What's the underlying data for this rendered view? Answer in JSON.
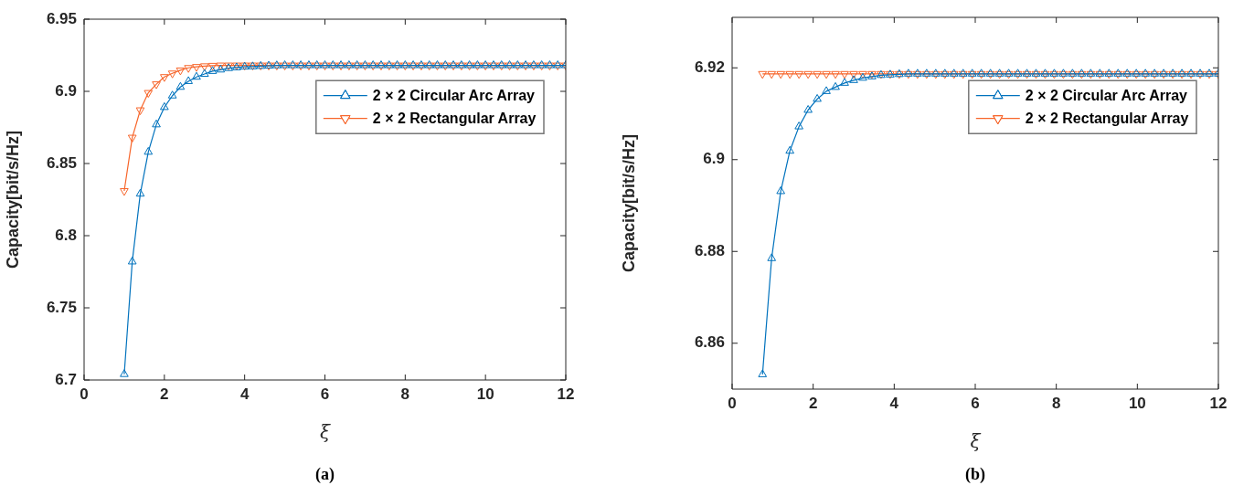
{
  "chart_data": [
    {
      "type": "line",
      "xlabel": "ξ",
      "ylabel": "Capacity[bit/s/Hz]",
      "annotations": [
        "(a)"
      ],
      "x": [
        1.0,
        1.2,
        1.4,
        1.6,
        1.8,
        2.0,
        2.2,
        2.4,
        2.6,
        2.8,
        3.0,
        3.2,
        3.4,
        3.6,
        3.8,
        4.0,
        4.2,
        4.4,
        4.6,
        4.8,
        5.0,
        5.2,
        5.4,
        5.6,
        5.8,
        6.0,
        6.2,
        6.4,
        6.6,
        6.8,
        7.0,
        7.2,
        7.4,
        7.6,
        7.8,
        8.0,
        8.2,
        8.4,
        8.6,
        8.8,
        9.0,
        9.2,
        9.4,
        9.6,
        9.8,
        10.0,
        10.2,
        10.4,
        10.6,
        10.8,
        11.0,
        11.2,
        11.4,
        11.6,
        11.8,
        12.0
      ],
      "series": [
        {
          "name": "2 × 2 Circular Arc Array",
          "color": "#0072bd",
          "marker": "triangle",
          "values": [
            6.704,
            6.782,
            6.829,
            6.858,
            6.877,
            6.889,
            6.897,
            6.903,
            6.907,
            6.91,
            6.912,
            6.914,
            6.915,
            6.916,
            6.9165,
            6.917,
            6.9172,
            6.9175,
            6.9177,
            6.9179,
            6.918,
            6.918,
            6.918,
            6.918,
            6.918,
            6.918,
            6.918,
            6.918,
            6.918,
            6.918,
            6.918,
            6.918,
            6.918,
            6.918,
            6.918,
            6.918,
            6.918,
            6.918,
            6.918,
            6.918,
            6.918,
            6.918,
            6.918,
            6.918,
            6.918,
            6.918,
            6.918,
            6.918,
            6.918,
            6.918,
            6.918,
            6.918,
            6.918,
            6.918,
            6.918,
            6.918
          ]
        },
        {
          "name": "2 × 2 Rectangular Array",
          "color": "#f7652a",
          "marker": "triangle-down",
          "values": [
            6.831,
            6.868,
            6.887,
            6.899,
            6.905,
            6.91,
            6.9125,
            6.9146,
            6.9163,
            6.917,
            6.9175,
            6.9178,
            6.918,
            6.918,
            6.918,
            6.918,
            6.918,
            6.918,
            6.918,
            6.918,
            6.918,
            6.918,
            6.918,
            6.918,
            6.918,
            6.918,
            6.918,
            6.918,
            6.918,
            6.918,
            6.918,
            6.918,
            6.918,
            6.918,
            6.918,
            6.918,
            6.918,
            6.918,
            6.918,
            6.918,
            6.918,
            6.918,
            6.918,
            6.918,
            6.918,
            6.918,
            6.918,
            6.918,
            6.918,
            6.918,
            6.918,
            6.918,
            6.918,
            6.918,
            6.918,
            6.918
          ]
        }
      ],
      "xlim": [
        0,
        12
      ],
      "xticks": [
        0,
        2,
        4,
        6,
        8,
        10,
        12
      ],
      "ylim": [
        6.7,
        6.95
      ],
      "yticks": [
        6.7,
        6.75,
        6.8,
        6.85,
        6.9,
        6.95
      ],
      "legend": "top right"
    },
    {
      "type": "line",
      "xlabel": "ξ",
      "ylabel": "Capacity[bit/s/Hz]",
      "annotations": [
        "(b)"
      ],
      "x": [
        0.75,
        0.975,
        1.2,
        1.425,
        1.65,
        1.875,
        2.1,
        2.325,
        2.55,
        2.775,
        3.0,
        3.225,
        3.45,
        3.675,
        3.9,
        4.125,
        4.35,
        4.575,
        4.8,
        5.025,
        5.25,
        5.475,
        5.7,
        5.925,
        6.15,
        6.375,
        6.6,
        6.825,
        7.05,
        7.275,
        7.5,
        7.725,
        7.95,
        8.175,
        8.4,
        8.625,
        8.85,
        9.075,
        9.3,
        9.525,
        9.75,
        9.975,
        10.2,
        10.425,
        10.65,
        10.875,
        11.1,
        11.325,
        11.55,
        11.775,
        12.0
      ],
      "series": [
        {
          "name": "2 × 2 Circular Arc Array",
          "color": "#0072bd",
          "marker": "triangle",
          "values": [
            6.8532,
            6.8785,
            6.8931,
            6.9019,
            6.9072,
            6.9108,
            6.9132,
            6.9149,
            6.9158,
            6.9167,
            6.9173,
            6.9178,
            6.9181,
            6.9184,
            6.9185,
            6.9186,
            6.9187,
            6.9187,
            6.9187,
            6.9187,
            6.9187,
            6.9187,
            6.9187,
            6.9187,
            6.9187,
            6.9187,
            6.9187,
            6.9187,
            6.9187,
            6.9187,
            6.9187,
            6.9187,
            6.9187,
            6.9187,
            6.9187,
            6.9187,
            6.9187,
            6.9187,
            6.9187,
            6.9187,
            6.9187,
            6.9187,
            6.9187,
            6.9187,
            6.9187,
            6.9187,
            6.9187,
            6.9187,
            6.9187,
            6.9187,
            6.9187
          ]
        },
        {
          "name": "2 × 2 Rectangular Array",
          "color": "#f7652a",
          "marker": "triangle-down",
          "values": [
            6.9187,
            6.9187,
            6.9187,
            6.9187,
            6.9187,
            6.9187,
            6.9187,
            6.9187,
            6.9187,
            6.9187,
            6.9187,
            6.9187,
            6.9187,
            6.9187,
            6.9187,
            6.9187,
            6.9187,
            6.9187,
            6.9187,
            6.9187,
            6.9187,
            6.9187,
            6.9187,
            6.9187,
            6.9187,
            6.9187,
            6.9187,
            6.9187,
            6.9187,
            6.9187,
            6.9187,
            6.9187,
            6.9187,
            6.9187,
            6.9187,
            6.9187,
            6.9187,
            6.9187,
            6.9187,
            6.9187,
            6.9187,
            6.9187,
            6.9187,
            6.9187,
            6.9187,
            6.9187,
            6.9187,
            6.9187,
            6.9187,
            6.9187,
            6.9187
          ]
        }
      ],
      "xlim": [
        0,
        12
      ],
      "xticks": [
        0,
        2,
        4,
        6,
        8,
        10,
        12
      ],
      "ylim": [
        6.85,
        6.931
      ],
      "yticks": [
        6.86,
        6.88,
        6.9,
        6.92
      ],
      "legend": "top right"
    }
  ]
}
